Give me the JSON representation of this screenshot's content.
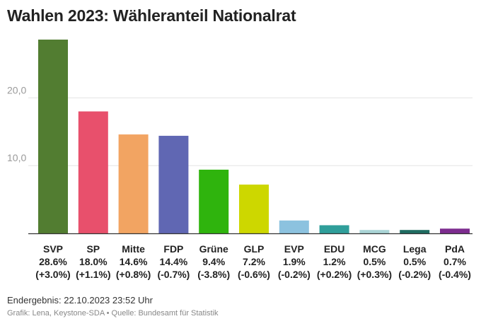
{
  "title": "Wahlen 2023: Wähleranteil Nationalrat",
  "footer": {
    "result_time": "Endergebnis: 22.10.2023 23:52 Uhr",
    "credits": "Grafik: Lena, Keystone-SDA • Quelle: Bundesamt für Statistik"
  },
  "chart_data": {
    "type": "bar",
    "title": "Wahlen 2023: Wähleranteil Nationalrat",
    "xlabel": "",
    "ylabel": "",
    "ylim": [
      0,
      28.6
    ],
    "yticks": [
      10,
      20
    ],
    "ytick_labels": [
      "10,0",
      "20,0"
    ],
    "grid": true,
    "categories": [
      "SVP",
      "SP",
      "Mitte",
      "FDP",
      "Grüne",
      "GLP",
      "EVP",
      "EDU",
      "MCG",
      "Lega",
      "PdA"
    ],
    "values": [
      28.6,
      18.0,
      14.6,
      14.4,
      9.4,
      7.2,
      1.9,
      1.2,
      0.5,
      0.5,
      0.7
    ],
    "value_labels": [
      "28.6%",
      "18.0%",
      "14.6%",
      "14.4%",
      "9.4%",
      "7.2%",
      "1.9%",
      "1.2%",
      "0.5%",
      "0.5%",
      "0.7%"
    ],
    "change_labels": [
      "(+3.0%)",
      "(+1.1%)",
      "(+0.8%)",
      "(-0.7%)",
      "(-3.8%)",
      "(-0.6%)",
      "(-0.2%)",
      "(+0.2%)",
      "(+0.3%)",
      "(-0.2%)",
      "(-0.4%)"
    ],
    "colors": [
      "#527d31",
      "#e8506c",
      "#f2a462",
      "#6067b3",
      "#2fb40d",
      "#cdd700",
      "#8cc2df",
      "#2f9e9a",
      "#a9d4d6",
      "#1e6b60",
      "#7d2c8f"
    ]
  }
}
